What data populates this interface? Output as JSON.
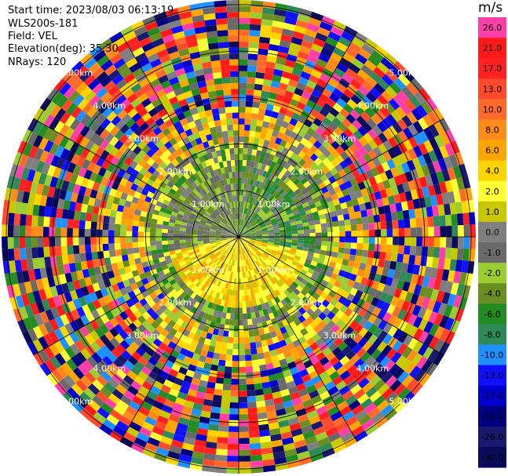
{
  "info": {
    "start_time": "Start time: 2023/08/03 06:13:19",
    "instrument": "WLS200s-181",
    "field": "Field: VEL",
    "elevation": "Elevation(deg): 35.30",
    "nrays": "NRays: 120"
  },
  "colorbar": {
    "unit": "m/s",
    "ticks": [
      "26.0",
      "21.0",
      "17.0",
      "13.0",
      "10.0",
      "8.0",
      "6.0",
      "4.0",
      "2.0",
      "1.0",
      "0.0",
      "-1.0",
      "-2.0",
      "-4.0",
      "-6.0",
      "-8.0",
      "-10.0",
      "-13.0",
      "-17.0",
      "-21.0",
      "-26.0",
      "-30.0"
    ],
    "colors": [
      "#ff3fa8",
      "#ff1a1a",
      "#ff2222",
      "#ff4b2b",
      "#ff6a2a",
      "#ff8c1a",
      "#ffa500",
      "#ffd400",
      "#ffff33",
      "#c8c800",
      "#7f7f7f",
      "#6a6a6a",
      "#9acd32",
      "#6b8e23",
      "#228b22",
      "#2e8b57",
      "#1e90ff",
      "#1010ff",
      "#0000cd",
      "#000080",
      "#191970",
      "#0a0a5a"
    ]
  },
  "chart_data": {
    "type": "ppi",
    "field": "VEL",
    "units": "m/s",
    "nrays": 120,
    "elevation_deg": 35.3,
    "range_rings": [
      {
        "label": "1.00km",
        "km": 1.0
      },
      {
        "label": "2.00km",
        "km": 2.0
      },
      {
        "label": "3.00km",
        "km": 3.0
      },
      {
        "label": "4.00km",
        "km": 4.0
      },
      {
        "label": "5.00km",
        "km": 5.0
      }
    ],
    "vmin": -30.0,
    "vmax": 30.0
  }
}
